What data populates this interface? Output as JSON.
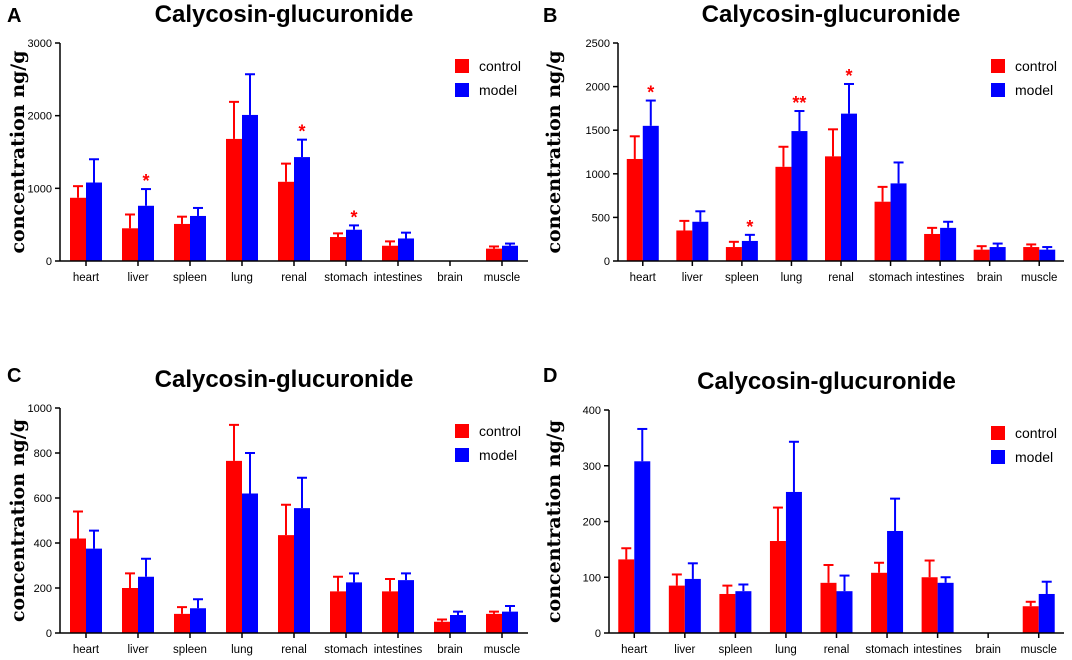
{
  "colors": {
    "control": "#ff0000",
    "model": "#0000ff",
    "axis": "#000000",
    "star": "#ff0000"
  },
  "chart_data": [
    {
      "panel": "A",
      "type": "bar",
      "title": "Calycosin-glucuronide",
      "ylabel": "concentration ng/g",
      "xlabel": "",
      "categories": [
        "heart",
        "liver",
        "spleen",
        "lung",
        "renal",
        "stomach",
        "intestines",
        "brain",
        "muscle"
      ],
      "ylim": [
        0,
        3000
      ],
      "yticks": [
        "0",
        "1000",
        "2000",
        "3000"
      ],
      "legend_position": "top-right",
      "series": [
        {
          "name": "control",
          "values": [
            870,
            450,
            510,
            1680,
            1090,
            330,
            210,
            0,
            170
          ],
          "errors": [
            160,
            190,
            100,
            510,
            250,
            50,
            60,
            0,
            30
          ]
        },
        {
          "name": "model",
          "values": [
            1080,
            760,
            620,
            2010,
            1430,
            430,
            310,
            0,
            210
          ],
          "errors": [
            320,
            230,
            110,
            560,
            240,
            60,
            80,
            0,
            30
          ]
        }
      ],
      "annotations": [
        {
          "category": 1,
          "series": "model",
          "text": "*"
        },
        {
          "category": 4,
          "series": "model",
          "text": "*"
        },
        {
          "category": 5,
          "series": "model",
          "text": "*"
        }
      ]
    },
    {
      "panel": "B",
      "type": "bar",
      "title": "Calycosin-glucuronide",
      "ylabel": "concentration ng/g",
      "xlabel": "",
      "categories": [
        "heart",
        "liver",
        "spleen",
        "lung",
        "renal",
        "stomach",
        "intestines",
        "brain",
        "muscle"
      ],
      "ylim": [
        0,
        2500
      ],
      "yticks": [
        "0",
        "500",
        "1000",
        "1500",
        "2000",
        "2500"
      ],
      "legend_position": "top-right",
      "series": [
        {
          "name": "control",
          "values": [
            1170,
            350,
            160,
            1080,
            1200,
            680,
            310,
            130,
            160
          ],
          "errors": [
            260,
            110,
            60,
            230,
            310,
            170,
            70,
            40,
            30
          ]
        },
        {
          "name": "model",
          "values": [
            1550,
            450,
            230,
            1490,
            1690,
            890,
            380,
            160,
            130
          ],
          "errors": [
            290,
            120,
            70,
            230,
            340,
            240,
            70,
            40,
            30
          ]
        }
      ],
      "annotations": [
        {
          "category": 0,
          "series": "model",
          "text": "*"
        },
        {
          "category": 2,
          "series": "model",
          "text": "*"
        },
        {
          "category": 3,
          "series": "model",
          "text": "**"
        },
        {
          "category": 4,
          "series": "model",
          "text": "*"
        }
      ]
    },
    {
      "panel": "C",
      "type": "bar",
      "title": "Calycosin-glucuronide",
      "ylabel": "concentration ng/g",
      "xlabel": "",
      "categories": [
        "heart",
        "liver",
        "spleen",
        "lung",
        "renal",
        "stomach",
        "intestines",
        "brain",
        "muscle"
      ],
      "ylim": [
        0,
        1000
      ],
      "yticks": [
        "0",
        "200",
        "400",
        "600",
        "800",
        "1000"
      ],
      "legend_position": "top-right",
      "series": [
        {
          "name": "control",
          "values": [
            420,
            200,
            85,
            765,
            435,
            185,
            185,
            50,
            85
          ],
          "errors": [
            120,
            65,
            30,
            160,
            135,
            65,
            55,
            10,
            10
          ]
        },
        {
          "name": "model",
          "values": [
            375,
            250,
            110,
            620,
            555,
            225,
            235,
            80,
            95
          ],
          "errors": [
            80,
            80,
            40,
            180,
            135,
            40,
            30,
            15,
            25
          ]
        }
      ],
      "annotations": []
    },
    {
      "panel": "D",
      "type": "bar",
      "title": "Calycosin-glucuronide",
      "ylabel": "concentration ng/g",
      "xlabel": "",
      "categories": [
        "heart",
        "liver",
        "spleen",
        "lung",
        "renal",
        "stomach",
        "intestines",
        "brain",
        "muscle"
      ],
      "ylim": [
        0,
        400
      ],
      "yticks": [
        "0",
        "100",
        "200",
        "300",
        "400"
      ],
      "legend_position": "top-right",
      "series": [
        {
          "name": "control",
          "values": [
            132,
            85,
            70,
            165,
            90,
            108,
            100,
            0,
            48
          ],
          "errors": [
            20,
            20,
            15,
            60,
            32,
            18,
            30,
            0,
            8
          ]
        },
        {
          "name": "model",
          "values": [
            308,
            97,
            75,
            253,
            75,
            183,
            90,
            0,
            70
          ],
          "errors": [
            58,
            28,
            12,
            90,
            28,
            58,
            10,
            0,
            22
          ]
        }
      ],
      "annotations": []
    }
  ]
}
